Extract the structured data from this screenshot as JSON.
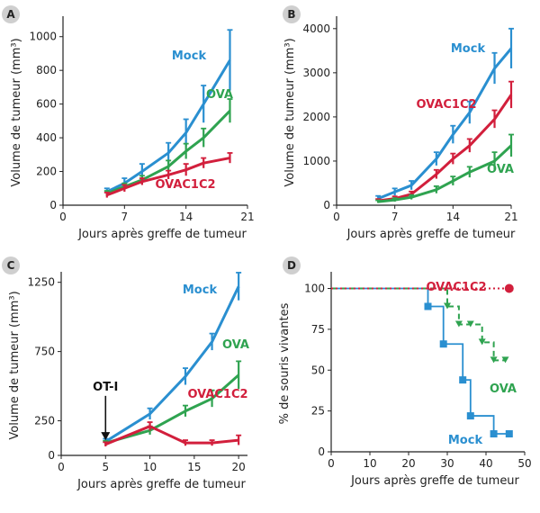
{
  "colors": {
    "blue": "#2a8fd0",
    "green": "#2fa350",
    "red": "#d21f3c",
    "axis": "#222222"
  },
  "chart_data": [
    {
      "panel": "A",
      "type": "line",
      "xlabel": "Jours après greffe de tumeur",
      "ylabel": "Volume de tumeur (mm³)",
      "xlim": [
        0,
        21
      ],
      "ylim": [
        0,
        1100
      ],
      "xticks": [
        0,
        7,
        14,
        21
      ],
      "yticks": [
        0,
        200,
        400,
        600,
        800,
        1000
      ],
      "series": [
        {
          "name": "Mock",
          "color": "#2a8fd0",
          "x": [
            5,
            7,
            9,
            12,
            14,
            16,
            19
          ],
          "y": [
            80,
            130,
            200,
            310,
            430,
            600,
            860
          ],
          "err": [
            20,
            30,
            45,
            60,
            80,
            110,
            180
          ]
        },
        {
          "name": "OVA",
          "color": "#2fa350",
          "x": [
            5,
            7,
            9,
            12,
            14,
            16,
            19
          ],
          "y": [
            70,
            110,
            150,
            230,
            320,
            400,
            560
          ],
          "err": [
            15,
            20,
            25,
            35,
            45,
            55,
            70
          ]
        },
        {
          "name": "OVAC1C2",
          "color": "#d21f3c",
          "x": [
            5,
            7,
            9,
            12,
            14,
            16,
            19
          ],
          "y": [
            60,
            100,
            140,
            180,
            210,
            250,
            280
          ],
          "err": [
            15,
            20,
            20,
            25,
            35,
            30,
            30
          ]
        }
      ],
      "labels": [
        {
          "text": "Mock",
          "series": "Mock"
        },
        {
          "text": "OVA",
          "series": "OVA"
        },
        {
          "text": "OVAC1C2",
          "series": "OVAC1C2"
        }
      ]
    },
    {
      "panel": "B",
      "type": "line",
      "xlabel": "Jours après greffe de tumeur",
      "ylabel": "Volume de tumeur (mm³)",
      "xlim": [
        0,
        21
      ],
      "ylim": [
        0,
        4200
      ],
      "xticks": [
        0,
        7,
        14,
        21
      ],
      "yticks": [
        0,
        1000,
        2000,
        3000,
        4000
      ],
      "series": [
        {
          "name": "Mock",
          "color": "#2a8fd0",
          "x": [
            5,
            7,
            9,
            12,
            14,
            16,
            19,
            21
          ],
          "y": [
            150,
            300,
            450,
            1050,
            1600,
            2100,
            3100,
            3550
          ],
          "err": [
            60,
            80,
            100,
            150,
            200,
            250,
            350,
            450
          ]
        },
        {
          "name": "OVAC1C2",
          "color": "#d21f3c",
          "x": [
            5,
            7,
            9,
            12,
            14,
            16,
            19,
            21
          ],
          "y": [
            100,
            150,
            250,
            700,
            1050,
            1350,
            1950,
            2500
          ],
          "err": [
            40,
            50,
            60,
            100,
            120,
            150,
            200,
            300
          ]
        },
        {
          "name": "OVA",
          "color": "#2fa350",
          "x": [
            5,
            7,
            9,
            12,
            14,
            16,
            19,
            21
          ],
          "y": [
            80,
            120,
            180,
            350,
            550,
            750,
            1000,
            1350
          ],
          "err": [
            30,
            40,
            50,
            80,
            100,
            120,
            200,
            250
          ]
        }
      ],
      "labels": [
        {
          "text": "Mock",
          "series": "Mock"
        },
        {
          "text": "OVAC1C2",
          "series": "OVAC1C2"
        },
        {
          "text": "OVA",
          "series": "OVA"
        }
      ]
    },
    {
      "panel": "C",
      "type": "line",
      "xlabel": "Jours après greffe de tumeur",
      "ylabel": "Volume de tumeur (mm³)",
      "xlim": [
        0,
        21
      ],
      "ylim": [
        0,
        1300
      ],
      "xticks": [
        0,
        5,
        10,
        15,
        20
      ],
      "yticks": [
        0,
        250,
        750,
        1250
      ],
      "annotation": {
        "text": "OT-I",
        "x": 5,
        "y_from": 430,
        "y_to": 110
      },
      "series": [
        {
          "name": "Mock",
          "color": "#2a8fd0",
          "x": [
            5,
            10,
            14,
            17,
            20
          ],
          "y": [
            100,
            300,
            570,
            820,
            1220
          ],
          "err": [
            20,
            40,
            60,
            60,
            100
          ]
        },
        {
          "name": "OVA",
          "color": "#2fa350",
          "x": [
            5,
            10,
            14,
            17,
            20
          ],
          "y": [
            90,
            180,
            320,
            410,
            580
          ],
          "err": [
            15,
            30,
            40,
            60,
            100
          ]
        },
        {
          "name": "OVAC1C2",
          "color": "#d21f3c",
          "x": [
            5,
            10,
            14,
            17,
            20
          ],
          "y": [
            80,
            210,
            90,
            90,
            110
          ],
          "err": [
            15,
            30,
            20,
            20,
            35
          ]
        }
      ],
      "labels": [
        {
          "text": "Mock",
          "series": "Mock"
        },
        {
          "text": "OVA",
          "series": "OVA"
        },
        {
          "text": "OVAC1C2",
          "series": "OVAC1C2"
        }
      ]
    },
    {
      "panel": "D",
      "type": "line",
      "subtype": "survival-step",
      "xlabel": "Jours après greffe de tumeur",
      "ylabel": "% de souris vivantes",
      "xlim": [
        0,
        50
      ],
      "ylim": [
        0,
        108
      ],
      "xticks": [
        0,
        10,
        20,
        30,
        40,
        50
      ],
      "yticks": [
        0,
        25,
        50,
        75,
        100
      ],
      "series": [
        {
          "name": "Mock",
          "color": "#2a8fd0",
          "style": "solid",
          "x": [
            0,
            25,
            29,
            34,
            36,
            42,
            46
          ],
          "y": [
            100,
            89,
            66,
            44,
            22,
            11,
            11
          ],
          "marker": "square"
        },
        {
          "name": "OVA",
          "color": "#2fa350",
          "style": "dashed",
          "x": [
            0,
            30,
            33,
            36,
            39,
            42,
            45
          ],
          "y": [
            100,
            89,
            78,
            78,
            67,
            56,
            56
          ],
          "marker": "triangle"
        },
        {
          "name": "OVAC1C2",
          "color": "#d21f3c",
          "style": "dotted",
          "x": [
            0,
            46
          ],
          "y": [
            100,
            100
          ],
          "marker": "circle"
        }
      ],
      "labels": [
        {
          "text": "OVAC1C2",
          "series": "OVAC1C2"
        },
        {
          "text": "OVA",
          "series": "OVA"
        },
        {
          "text": "Mock",
          "series": "Mock"
        }
      ]
    }
  ]
}
